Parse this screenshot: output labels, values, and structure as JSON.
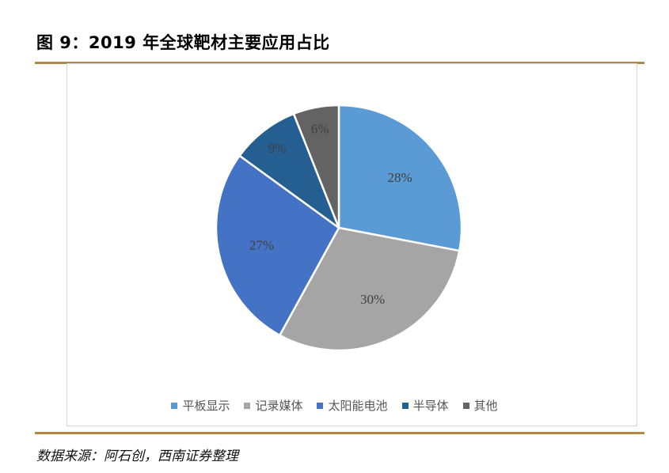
{
  "figure": {
    "title": "图 9：2019 年全球靶材主要应用占比",
    "source": "数据来源：阿石创，西南证券整理"
  },
  "chart_data": {
    "type": "pie",
    "title": "",
    "categories": [
      "平板显示",
      "记录媒体",
      "太阳能电池",
      "半导体",
      "其他"
    ],
    "values": [
      28,
      30,
      27,
      9,
      6
    ],
    "labels": [
      "28%",
      "30%",
      "27%",
      "9%",
      "6%"
    ],
    "colors": [
      "#5b9bd5",
      "#a5a5a5",
      "#4472c4",
      "#255e91",
      "#636363"
    ],
    "start_angle": "12 o'clock",
    "direction": "clockwise",
    "legend_position": "bottom"
  }
}
